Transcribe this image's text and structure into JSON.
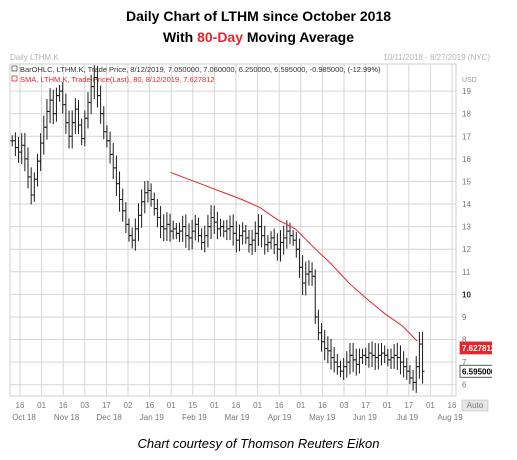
{
  "header": {
    "title_line1": "Daily Chart of LTHM since October 2018",
    "title_line2_prefix": "With ",
    "title_line2_accent": "80-Day",
    "title_line2_suffix": " Moving Average"
  },
  "panel": {
    "symbol_label": "Daily LTHM.K",
    "date_range": "10/11/2018 - 8/27/2019 (NYC)",
    "legend_bar": "BarOHLC, LTHM.K, Trade Price, 8/12/2019, 7.050000, 7.060000, 6.250000, 6.595000, -0.985000, (-12.99%)",
    "legend_sma": "SMA, LTHM.K, Trade Price(Last), 80, 8/12/2019, 7.627812",
    "currency": "USD",
    "auto_label": "Auto"
  },
  "colors": {
    "price_bar": "#1a1a1a",
    "sma_line": "#e4262c",
    "grid": "#d6d6d6",
    "axis_text": "#777777",
    "sma_tag_bg": "#e4262c",
    "price_tag_bg": "#ffffff",
    "accent": "#e4262c"
  },
  "chart_data": {
    "type": "line",
    "title": "Daily Chart of LTHM since October 2018 With 80-Day Moving Average",
    "ylim": [
      5.5,
      20.2
    ],
    "y_ticks": [
      "6",
      "7",
      "8",
      "9",
      "10",
      "11",
      "12",
      "13",
      "14",
      "15",
      "16",
      "17",
      "18",
      "19"
    ],
    "x_tick_labels": [
      "16",
      "01",
      "16",
      "03",
      "17",
      "02",
      "16",
      "01",
      "15",
      "01",
      "16",
      "01",
      "16",
      "01",
      "16",
      "03",
      "17",
      "01",
      "17",
      "01",
      "16"
    ],
    "x_month_labels": [
      "Oct 18",
      "Nov 18",
      "Dec 18",
      "Jan 19",
      "Feb 19",
      "Mar 19",
      "Apr 19",
      "May 19",
      "Jun 19",
      "Jul 19",
      "Aug 19"
    ],
    "series": [
      {
        "name": "BarOHLC, LTHM.K, Trade Price",
        "style": "ohlc",
        "close_path": [
          16.8,
          16.5,
          16.3,
          16.6,
          16.0,
          15.2,
          14.4,
          15.1,
          15.9,
          16.7,
          17.4,
          18.1,
          18.6,
          18.0,
          18.8,
          19.0,
          18.4,
          17.6,
          17.0,
          17.6,
          18.2,
          17.5,
          16.9,
          17.8,
          18.5,
          19.2,
          19.6,
          18.8,
          18.0,
          17.2,
          16.8,
          16.2,
          15.6,
          14.9,
          14.2,
          13.7,
          13.1,
          12.6,
          12.4,
          12.9,
          13.5,
          14.1,
          14.5,
          14.6,
          14.2,
          13.8,
          13.4,
          13.0,
          12.9,
          13.1,
          12.8,
          12.9,
          12.7,
          12.8,
          13.0,
          12.6,
          12.5,
          12.8,
          13.1,
          12.6,
          12.3,
          12.6,
          13.0,
          13.4,
          13.2,
          12.9,
          13.0,
          12.8,
          12.9,
          13.0,
          12.7,
          12.4,
          12.6,
          12.8,
          12.5,
          12.2,
          12.4,
          12.7,
          13.0,
          12.6,
          12.2,
          12.3,
          12.5,
          12.2,
          12.0,
          12.3,
          12.5,
          12.8,
          12.6,
          12.4,
          12.0,
          11.2,
          10.5,
          10.9,
          11.0,
          10.8,
          9.0,
          8.3,
          7.9,
          7.6,
          7.5,
          7.2,
          7.0,
          6.8,
          6.6,
          6.8,
          7.0,
          7.3,
          7.1,
          6.9,
          7.2,
          7.3,
          7.2,
          7.4,
          7.3,
          7.2,
          7.3,
          7.4,
          7.3,
          7.1,
          7.2,
          7.3,
          7.2,
          7.0,
          6.8,
          6.6,
          6.3,
          6.1,
          6.8,
          7.8,
          6.595
        ],
        "last": {
          "open": 7.05,
          "high": 7.06,
          "low": 6.25,
          "close": 6.595
        }
      },
      {
        "name": "SMA, LTHM.K, Trade Price(Last), 80",
        "style": "line",
        "points": [
          [
            0.36,
            15.4
          ],
          [
            0.4,
            15.1
          ],
          [
            0.44,
            14.8
          ],
          [
            0.48,
            14.5
          ],
          [
            0.52,
            14.2
          ],
          [
            0.56,
            13.85
          ],
          [
            0.6,
            13.3
          ],
          [
            0.64,
            12.9
          ],
          [
            0.68,
            12.1
          ],
          [
            0.72,
            11.35
          ],
          [
            0.76,
            10.5
          ],
          [
            0.8,
            9.8
          ],
          [
            0.84,
            9.15
          ],
          [
            0.88,
            8.6
          ],
          [
            0.913,
            7.93
          ]
        ],
        "last": 7.627812
      }
    ],
    "price_tags": [
      {
        "series": "sma",
        "label": "7.627812",
        "value": 7.627812
      },
      {
        "series": "price",
        "label": "6.595000",
        "value": 6.595
      }
    ],
    "grid": true
  },
  "caption": "Chart courtesy of Thomson Reuters Eikon"
}
